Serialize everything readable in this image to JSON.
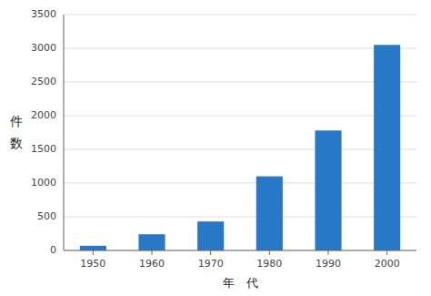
{
  "chart_data": {
    "type": "bar",
    "categories": [
      "1950",
      "1960",
      "1970",
      "1980",
      "1990",
      "2000"
    ],
    "values": [
      70,
      240,
      430,
      1100,
      1780,
      3050
    ],
    "color": "#2878c8",
    "xlabel": "年　代",
    "ylabel": "件数",
    "ylim": [
      0,
      3500
    ],
    "yticks": [
      0,
      500,
      1000,
      1500,
      2000,
      2500,
      3000,
      3500
    ],
    "grid": true
  }
}
